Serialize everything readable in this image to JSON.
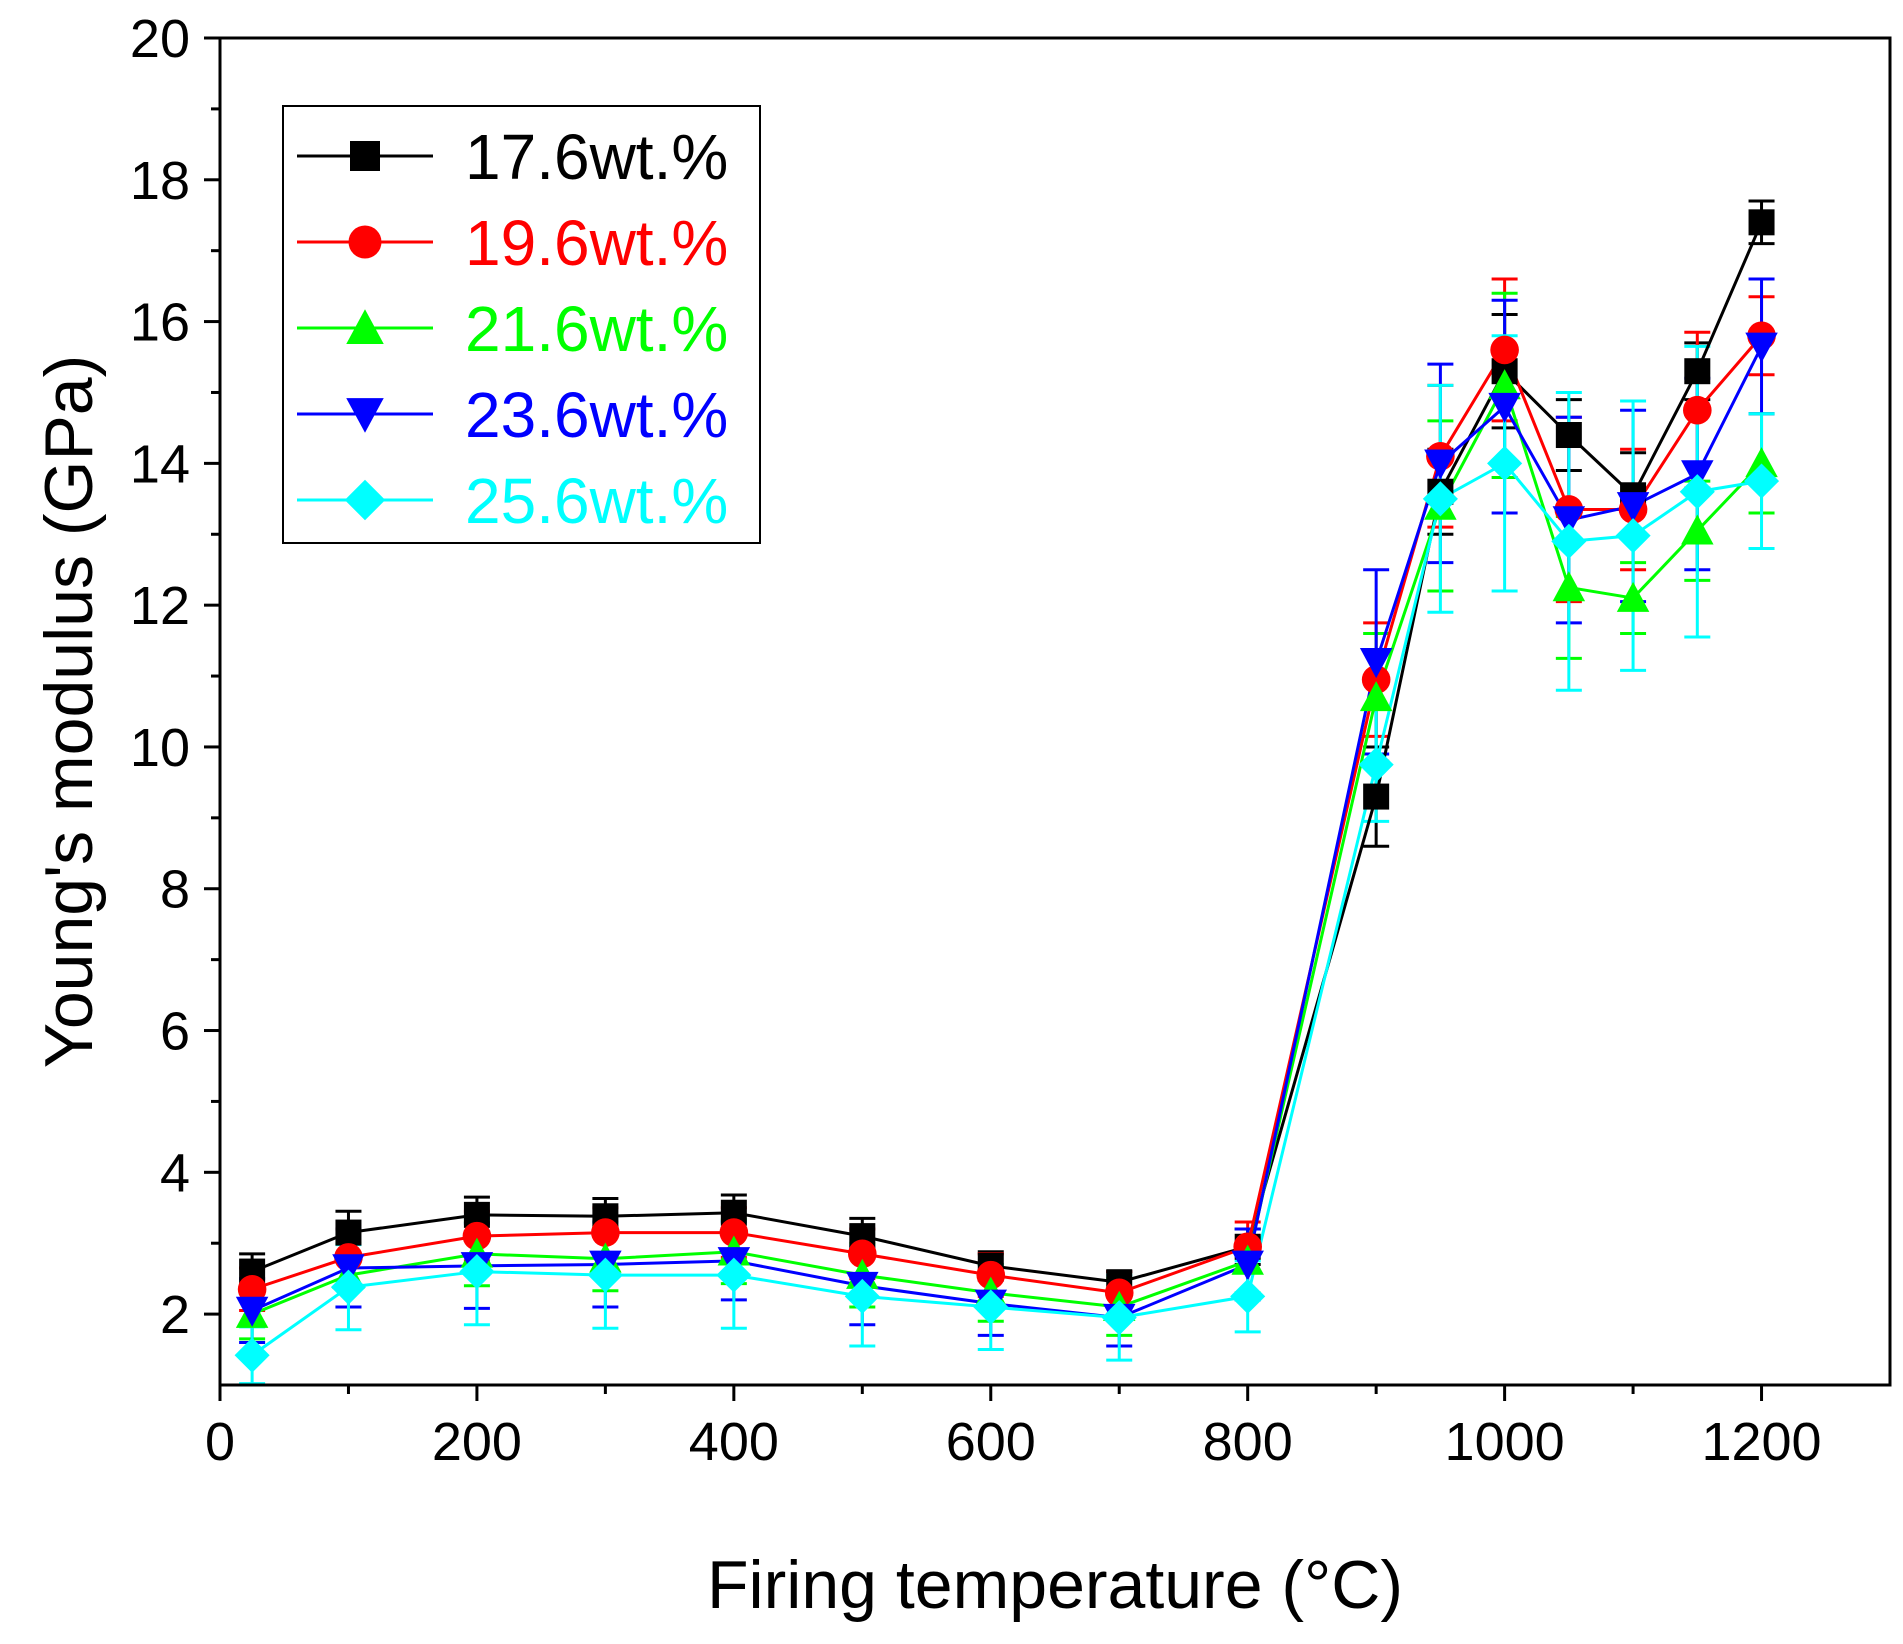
{
  "chart_data": {
    "type": "line",
    "title": "",
    "xlabel": "Firing temperature (°C)",
    "ylabel": "Young's modulus (GPa)",
    "xlim": [
      0,
      1300
    ],
    "ylim": [
      1,
      20
    ],
    "xticks": [
      0,
      200,
      400,
      600,
      800,
      1000,
      1200
    ],
    "xtick_labels": [
      "0",
      "200",
      "400",
      "600",
      "800",
      "1000",
      "1200"
    ],
    "yticks": [
      2,
      4,
      6,
      8,
      10,
      12,
      14,
      16,
      18,
      20
    ],
    "ytick_labels": [
      "2",
      "4",
      "6",
      "8",
      "10",
      "12",
      "14",
      "16",
      "18",
      "20"
    ],
    "grid": false,
    "legend_position": "top-left",
    "x": [
      25,
      100,
      200,
      300,
      400,
      500,
      600,
      700,
      800,
      900,
      950,
      1000,
      1050,
      1100,
      1150,
      1200
    ],
    "series": [
      {
        "name": "17.6wt.%",
        "color": "#000000",
        "marker": "square",
        "values": [
          2.6,
          3.15,
          3.4,
          3.38,
          3.43,
          3.1,
          2.68,
          2.45,
          2.95,
          9.3,
          13.6,
          15.3,
          14.4,
          13.55,
          15.3,
          17.4
        ],
        "errors": [
          0.25,
          0.3,
          0.25,
          0.25,
          0.25,
          0.25,
          0.2,
          0.15,
          0.25,
          0.7,
          0.6,
          0.8,
          0.5,
          0.6,
          0.4,
          0.3
        ]
      },
      {
        "name": "19.6wt.%",
        "color": "#ff0000",
        "marker": "circle",
        "values": [
          2.35,
          2.8,
          3.1,
          3.15,
          3.15,
          2.85,
          2.55,
          2.3,
          2.95,
          10.95,
          14.1,
          15.6,
          13.35,
          13.35,
          14.75,
          15.8
        ],
        "errors": [
          0.3,
          0.4,
          0.35,
          0.35,
          0.35,
          0.35,
          0.3,
          0.3,
          0.35,
          0.8,
          1.0,
          1.0,
          1.3,
          0.85,
          1.1,
          0.55
        ]
      },
      {
        "name": "21.6wt.%",
        "color": "#00ff00",
        "marker": "triangle-up",
        "values": [
          2.0,
          2.55,
          2.85,
          2.78,
          2.88,
          2.55,
          2.3,
          2.1,
          2.75,
          10.7,
          13.4,
          15.1,
          12.25,
          12.1,
          13.05,
          14.0
        ],
        "errors": [
          0.35,
          0.45,
          0.45,
          0.45,
          0.45,
          0.45,
          0.4,
          0.4,
          0.45,
          0.9,
          1.2,
          1.3,
          1.0,
          0.5,
          0.7,
          0.7
        ]
      },
      {
        "name": "23.6wt.%",
        "color": "#0000ff",
        "marker": "triangle-down",
        "values": [
          2.05,
          2.65,
          2.68,
          2.7,
          2.75,
          2.4,
          2.15,
          1.95,
          2.7,
          11.2,
          14.0,
          14.8,
          13.2,
          13.4,
          13.85,
          15.65
        ],
        "errors": [
          0.45,
          0.55,
          0.6,
          0.6,
          0.55,
          0.55,
          0.45,
          0.4,
          0.5,
          1.3,
          1.4,
          1.5,
          1.45,
          1.35,
          1.35,
          0.95
        ]
      },
      {
        "name": "25.6wt.%",
        "color": "#00ffff",
        "marker": "diamond",
        "values": [
          1.42,
          2.38,
          2.6,
          2.55,
          2.55,
          2.25,
          2.1,
          1.95,
          2.25,
          9.75,
          13.5,
          14.0,
          12.9,
          12.98,
          13.6,
          13.75
        ],
        "errors": [
          0.4,
          0.6,
          0.75,
          0.75,
          0.75,
          0.7,
          0.6,
          0.6,
          0.5,
          0.8,
          1.6,
          1.8,
          2.1,
          1.9,
          2.05,
          0.95
        ]
      }
    ]
  }
}
